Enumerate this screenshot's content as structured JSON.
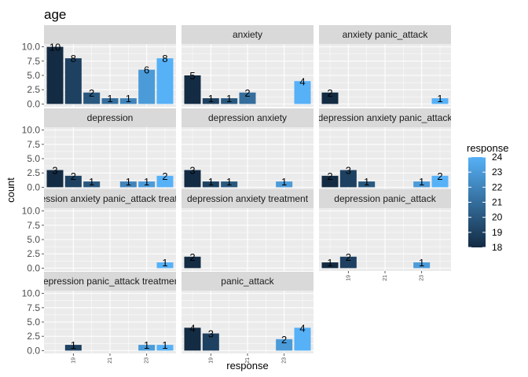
{
  "chart_data": {
    "type": "bar",
    "title": "age",
    "xlabel": "response",
    "ylabel": "count",
    "ylim": [
      0,
      10
    ],
    "xlim": [
      17.4,
      24.6
    ],
    "y_ticks": [
      "0.0",
      "2.5",
      "5.0",
      "7.5",
      "10.0"
    ],
    "y_tick_values": [
      0,
      2.5,
      5,
      7.5,
      10
    ],
    "x_ticks": [
      "19",
      "21",
      "23"
    ],
    "x_tick_values": [
      19,
      21,
      23
    ],
    "grid": true,
    "facet_columns": 3,
    "legend": {
      "title": "response",
      "placement": "right",
      "ticks": [
        "24",
        "23",
        "22",
        "21",
        "20",
        "19",
        "18"
      ],
      "low_value": 18,
      "high_value": 24,
      "low_color": "#132b43",
      "high_color": "#56b1f7"
    },
    "panels": [
      {
        "strip": "",
        "bars": [
          {
            "x": 18,
            "count": 10,
            "label": "10"
          },
          {
            "x": 19,
            "count": 8,
            "label": "8"
          },
          {
            "x": 20,
            "count": 2,
            "label": "2"
          },
          {
            "x": 21,
            "count": 1,
            "label": "1"
          },
          {
            "x": 22,
            "count": 1,
            "label": "1"
          },
          {
            "x": 23,
            "count": 6,
            "label": "6"
          },
          {
            "x": 24,
            "count": 8,
            "label": "8"
          }
        ]
      },
      {
        "strip": "anxiety",
        "bars": [
          {
            "x": 18,
            "count": 5,
            "label": "5"
          },
          {
            "x": 19,
            "count": 1,
            "label": "1"
          },
          {
            "x": 20,
            "count": 1,
            "label": "1"
          },
          {
            "x": 21,
            "count": 2,
            "label": "2"
          },
          {
            "x": 24,
            "count": 4,
            "label": "4"
          }
        ]
      },
      {
        "strip": "anxiety panic_attack",
        "bars": [
          {
            "x": 18,
            "count": 2,
            "label": "2"
          },
          {
            "x": 24,
            "count": 1,
            "label": "1"
          }
        ]
      },
      {
        "strip": "depression",
        "bars": [
          {
            "x": 18,
            "count": 3,
            "label": "3"
          },
          {
            "x": 19,
            "count": 2,
            "label": "2"
          },
          {
            "x": 20,
            "count": 1,
            "label": "1"
          },
          {
            "x": 22,
            "count": 1,
            "label": "1"
          },
          {
            "x": 23,
            "count": 1,
            "label": "1"
          },
          {
            "x": 24,
            "count": 2,
            "label": "2"
          }
        ]
      },
      {
        "strip": "depression anxiety",
        "bars": [
          {
            "x": 18,
            "count": 3,
            "label": "3"
          },
          {
            "x": 19,
            "count": 1,
            "label": "1"
          },
          {
            "x": 20,
            "count": 1,
            "label": "1"
          },
          {
            "x": 23,
            "count": 1,
            "label": "1"
          }
        ]
      },
      {
        "strip": "depression anxiety panic_attack",
        "bars": [
          {
            "x": 18,
            "count": 2,
            "label": "2"
          },
          {
            "x": 19,
            "count": 3,
            "label": "3"
          },
          {
            "x": 20,
            "count": 1,
            "label": "1"
          },
          {
            "x": 23,
            "count": 1,
            "label": "1"
          },
          {
            "x": 24,
            "count": 2,
            "label": "2"
          }
        ]
      },
      {
        "strip": "depression anxiety panic_attack treatment",
        "bars": [
          {
            "x": 24,
            "count": 1,
            "label": "1"
          }
        ]
      },
      {
        "strip": "depression anxiety treatment",
        "bars": [
          {
            "x": 18,
            "count": 2,
            "label": "2"
          }
        ]
      },
      {
        "strip": "depression panic_attack",
        "bars": [
          {
            "x": 18,
            "count": 1,
            "label": "1"
          },
          {
            "x": 19,
            "count": 2,
            "label": "2"
          },
          {
            "x": 23,
            "count": 1,
            "label": "1"
          }
        ]
      },
      {
        "strip": "depression panic_attack treatment",
        "bars": [
          {
            "x": 19,
            "count": 1,
            "label": "1"
          },
          {
            "x": 23,
            "count": 1,
            "label": "1"
          },
          {
            "x": 24,
            "count": 1,
            "label": "1"
          }
        ]
      },
      {
        "strip": "panic_attack",
        "bars": [
          {
            "x": 18,
            "count": 4,
            "label": "4"
          },
          {
            "x": 19,
            "count": 3,
            "label": "3"
          },
          {
            "x": 23,
            "count": 2,
            "label": "2"
          },
          {
            "x": 24,
            "count": 4,
            "label": "4"
          }
        ]
      }
    ]
  }
}
